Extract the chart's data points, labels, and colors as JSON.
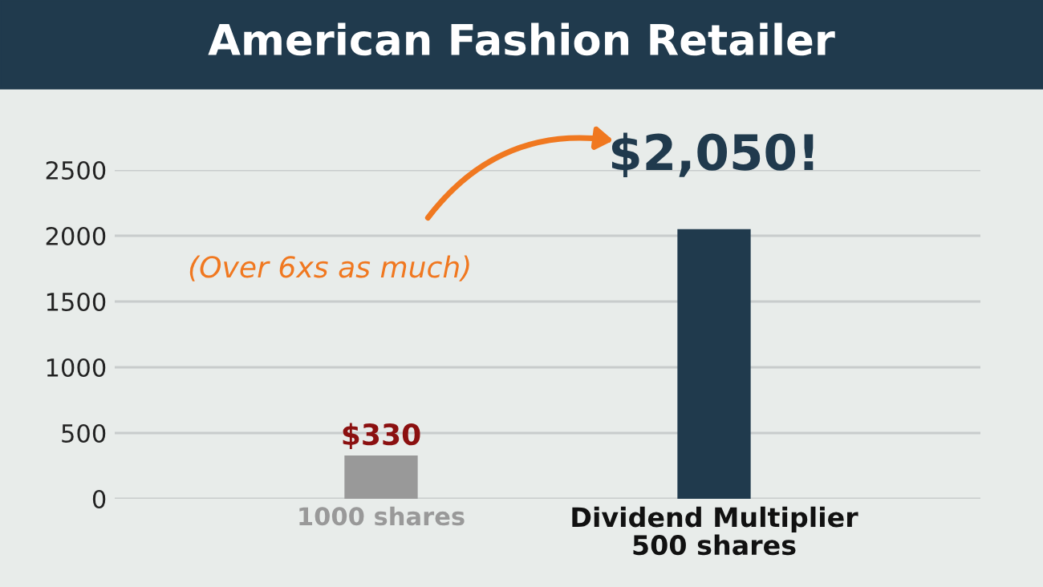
{
  "chart_data": {
    "type": "bar",
    "title": "American Fashion Retailer",
    "categories": [
      "1000 shares",
      "Dividend Multiplier\n500 shares"
    ],
    "values": [
      330,
      2050
    ],
    "colors": [
      "#999999",
      "#203a4d"
    ],
    "value_labels": [
      "$330",
      "$2,050!"
    ],
    "ylim": [
      0,
      2500
    ],
    "yticks": [
      0,
      500,
      1000,
      1500,
      2000,
      2500
    ],
    "grid": "y",
    "annotations": [
      "(Over 6xs as much)"
    ]
  }
}
